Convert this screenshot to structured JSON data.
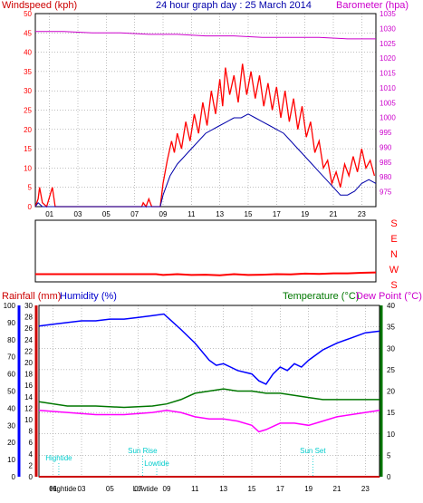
{
  "colors": {
    "wind": "#ff0000",
    "gust": "#ff0000",
    "avg_wind": "#0000aa",
    "baro": "#cc00cc",
    "rain": "#cc0000",
    "humidity": "#0000ff",
    "temperature": "#007700",
    "dew_point": "#ff00ff",
    "direction": "#ff0000",
    "events": "#00cccc",
    "grid": "#808080"
  },
  "chart_data": [
    {
      "id": "wind_baro",
      "type": "line",
      "title": "24 hour graph day : 25 March 2014",
      "ylabel_left": "Windspeed (kph)",
      "ylabel_right": "Barometer (hpa)",
      "xlim": [
        0,
        24
      ],
      "ylim_left": [
        0,
        50
      ],
      "ylim_right": [
        970,
        1035
      ],
      "xticks": [
        "01",
        "03",
        "05",
        "07",
        "09",
        "11",
        "13",
        "15",
        "17",
        "19",
        "21",
        "23"
      ],
      "yticks_left": [
        "0",
        "5",
        "10",
        "15",
        "20",
        "25",
        "30",
        "35",
        "40",
        "45",
        "50"
      ],
      "yticks_right": [
        "975",
        "980",
        "985",
        "990",
        "995",
        "1000",
        "1005",
        "1010",
        "1015",
        "1020",
        "1025",
        "1030",
        "1035"
      ],
      "grid": true,
      "series": [
        {
          "name": "Windspeed",
          "axis": "left",
          "color": "#ff0000",
          "points": [
            [
              0,
              0
            ],
            [
              0.2,
              2
            ],
            [
              0.3,
              5
            ],
            [
              0.5,
              1
            ],
            [
              0.8,
              0
            ],
            [
              1.2,
              5
            ],
            [
              1.4,
              0
            ],
            [
              7.5,
              0
            ],
            [
              7.6,
              1
            ],
            [
              7.8,
              0
            ],
            [
              8.0,
              2
            ],
            [
              8.2,
              0
            ],
            [
              8.8,
              0
            ],
            [
              9.0,
              6
            ],
            [
              9.3,
              12
            ],
            [
              9.6,
              17
            ],
            [
              9.8,
              14
            ],
            [
              10.0,
              19
            ],
            [
              10.3,
              15
            ],
            [
              10.6,
              22
            ],
            [
              10.9,
              17
            ],
            [
              11.2,
              24
            ],
            [
              11.5,
              19
            ],
            [
              11.8,
              27
            ],
            [
              12.1,
              21
            ],
            [
              12.4,
              30
            ],
            [
              12.7,
              24
            ],
            [
              13.0,
              33
            ],
            [
              13.2,
              26
            ],
            [
              13.4,
              36
            ],
            [
              13.7,
              29
            ],
            [
              14.0,
              34
            ],
            [
              14.3,
              27
            ],
            [
              14.6,
              37
            ],
            [
              14.9,
              29
            ],
            [
              15.2,
              35
            ],
            [
              15.5,
              28
            ],
            [
              15.8,
              34
            ],
            [
              16.1,
              26
            ],
            [
              16.4,
              32
            ],
            [
              16.7,
              25
            ],
            [
              17.0,
              31
            ],
            [
              17.3,
              23
            ],
            [
              17.6,
              30
            ],
            [
              17.9,
              22
            ],
            [
              18.2,
              28
            ],
            [
              18.5,
              20
            ],
            [
              18.8,
              26
            ],
            [
              19.1,
              18
            ],
            [
              19.4,
              22
            ],
            [
              19.7,
              14
            ],
            [
              20.0,
              17
            ],
            [
              20.3,
              10
            ],
            [
              20.6,
              12
            ],
            [
              20.9,
              6
            ],
            [
              21.2,
              9
            ],
            [
              21.5,
              5
            ],
            [
              21.8,
              11
            ],
            [
              22.1,
              8
            ],
            [
              22.4,
              13
            ],
            [
              22.7,
              9
            ],
            [
              23.0,
              15
            ],
            [
              23.3,
              10
            ],
            [
              23.6,
              12
            ],
            [
              23.9,
              8
            ]
          ]
        },
        {
          "name": "Average",
          "axis": "left",
          "color": "#0000aa",
          "points": [
            [
              0,
              0
            ],
            [
              0.2,
              1
            ],
            [
              0.5,
              0
            ],
            [
              8.8,
              0
            ],
            [
              9.0,
              3
            ],
            [
              9.5,
              8
            ],
            [
              10.0,
              11
            ],
            [
              10.5,
              13
            ],
            [
              11.0,
              15
            ],
            [
              11.5,
              17
            ],
            [
              12.0,
              19
            ],
            [
              12.5,
              20
            ],
            [
              13.0,
              21
            ],
            [
              13.5,
              22
            ],
            [
              14.0,
              23
            ],
            [
              14.5,
              23
            ],
            [
              15.0,
              24
            ],
            [
              15.5,
              23
            ],
            [
              16.0,
              22
            ],
            [
              16.5,
              21
            ],
            [
              17.0,
              20
            ],
            [
              17.5,
              19
            ],
            [
              18.0,
              17
            ],
            [
              18.5,
              15
            ],
            [
              19.0,
              13
            ],
            [
              19.5,
              11
            ],
            [
              20.0,
              9
            ],
            [
              20.5,
              7
            ],
            [
              21.0,
              5
            ],
            [
              21.5,
              3
            ],
            [
              22.0,
              3
            ],
            [
              22.5,
              4
            ],
            [
              23.0,
              6
            ],
            [
              23.5,
              7
            ],
            [
              24.0,
              6
            ]
          ]
        },
        {
          "name": "Barometer",
          "axis": "right",
          "color": "#cc00cc",
          "points": [
            [
              0,
              1029
            ],
            [
              2,
              1029
            ],
            [
              4,
              1028.5
            ],
            [
              6,
              1028.5
            ],
            [
              8,
              1028
            ],
            [
              10,
              1028
            ],
            [
              12,
              1027.5
            ],
            [
              14,
              1027.5
            ],
            [
              16,
              1027
            ],
            [
              18,
              1027
            ],
            [
              20,
              1027
            ],
            [
              22,
              1026.5
            ],
            [
              24,
              1026.5
            ]
          ]
        }
      ]
    },
    {
      "id": "wind_direction",
      "type": "line",
      "ylabel_right": [
        "S",
        "E",
        "N",
        "W",
        "S"
      ],
      "xlim": [
        0,
        24
      ],
      "ylim": [
        0,
        360
      ],
      "series": [
        {
          "name": "Wind direction",
          "color": "#ff0000",
          "points": [
            [
              0,
              45
            ],
            [
              8.5,
              45
            ],
            [
              9,
              40
            ],
            [
              10,
              45
            ],
            [
              11,
              40
            ],
            [
              12,
              42
            ],
            [
              13,
              38
            ],
            [
              14,
              45
            ],
            [
              15,
              40
            ],
            [
              16,
              42
            ],
            [
              17,
              45
            ],
            [
              18,
              44
            ],
            [
              19,
              48
            ],
            [
              20,
              46
            ],
            [
              21,
              50
            ],
            [
              22,
              50
            ],
            [
              23,
              53
            ],
            [
              24,
              55
            ]
          ]
        }
      ]
    },
    {
      "id": "rain_temp",
      "type": "line",
      "ylabels": [
        "Rainfall (mm)",
        "Humidity (%)",
        "Temperature (°C)",
        "Dew Point (°C)"
      ],
      "xlim": [
        0,
        24
      ],
      "xticks": [
        "01",
        "03",
        "05",
        "07",
        "09",
        "11",
        "13",
        "15",
        "17",
        "19",
        "21",
        "23"
      ],
      "humidity_ticks": [
        "0",
        "10",
        "20",
        "30",
        "40",
        "50",
        "60",
        "70",
        "80",
        "90",
        "100"
      ],
      "rain_ticks": [
        "0",
        "2",
        "4",
        "6",
        "8",
        "10",
        "12",
        "14",
        "16",
        "18",
        "20",
        "22",
        "24",
        "26",
        "28",
        "30"
      ],
      "temp_ticks": [
        "0",
        "5",
        "10",
        "15",
        "20",
        "25",
        "30",
        "35",
        "40"
      ],
      "humidity_range": [
        0,
        100
      ],
      "rain_range": [
        0,
        30
      ],
      "temp_range": [
        0,
        40
      ],
      "grid": true,
      "series": [
        {
          "name": "Humidity",
          "axis": "humidity",
          "color": "#0000ff",
          "points": [
            [
              0,
              88
            ],
            [
              1,
              89
            ],
            [
              2,
              90
            ],
            [
              3,
              91
            ],
            [
              4,
              91
            ],
            [
              5,
              92
            ],
            [
              6,
              92
            ],
            [
              7,
              93
            ],
            [
              8,
              94
            ],
            [
              8.8,
              95
            ],
            [
              9.2,
              92
            ],
            [
              10,
              86
            ],
            [
              11,
              78
            ],
            [
              12,
              68
            ],
            [
              12.5,
              65
            ],
            [
              13,
              66
            ],
            [
              13.5,
              64
            ],
            [
              14,
              62
            ],
            [
              15,
              60
            ],
            [
              15.5,
              56
            ],
            [
              16,
              54
            ],
            [
              16.5,
              60
            ],
            [
              17,
              64
            ],
            [
              17.5,
              62
            ],
            [
              18,
              66
            ],
            [
              18.5,
              64
            ],
            [
              19,
              68
            ],
            [
              20,
              74
            ],
            [
              21,
              78
            ],
            [
              22,
              81
            ],
            [
              23,
              84
            ],
            [
              24,
              85
            ]
          ]
        },
        {
          "name": "Temperature",
          "axis": "temp",
          "color": "#007700",
          "points": [
            [
              0,
              17.5
            ],
            [
              2,
              16.5
            ],
            [
              4,
              16.5
            ],
            [
              6,
              16.2
            ],
            [
              8,
              16.5
            ],
            [
              9,
              17
            ],
            [
              10,
              18
            ],
            [
              11,
              19.5
            ],
            [
              12,
              20
            ],
            [
              13,
              20.5
            ],
            [
              14,
              20
            ],
            [
              15,
              20
            ],
            [
              16,
              19.5
            ],
            [
              17,
              19.5
            ],
            [
              18,
              19
            ],
            [
              19,
              18.5
            ],
            [
              20,
              18
            ],
            [
              21,
              18
            ],
            [
              22,
              18
            ],
            [
              23,
              18
            ],
            [
              24,
              18
            ]
          ]
        },
        {
          "name": "Dew Point",
          "axis": "temp",
          "color": "#ff00ff",
          "points": [
            [
              0,
              15.5
            ],
            [
              2,
              15
            ],
            [
              4,
              14.5
            ],
            [
              6,
              14.5
            ],
            [
              8,
              15
            ],
            [
              9,
              15.5
            ],
            [
              10,
              15
            ],
            [
              11,
              14
            ],
            [
              12,
              13.5
            ],
            [
              13,
              13.5
            ],
            [
              14,
              13
            ],
            [
              15,
              12
            ],
            [
              15.5,
              10.5
            ],
            [
              16,
              11
            ],
            [
              17,
              12.5
            ],
            [
              18,
              12.5
            ],
            [
              19,
              12
            ],
            [
              20,
              13
            ],
            [
              21,
              14
            ],
            [
              22,
              14.5
            ],
            [
              23,
              15
            ],
            [
              24,
              15.5
            ]
          ]
        },
        {
          "name": "Rainfall",
          "axis": "rain",
          "color": "#cc0000",
          "points": [
            [
              0,
              0
            ],
            [
              24,
              0
            ]
          ]
        }
      ],
      "events": [
        {
          "label": "Hightide",
          "hour": 1.4,
          "level": "high"
        },
        {
          "label": "Hightide",
          "hour": 1.7,
          "level": "bottom"
        },
        {
          "label": "Sun Rise",
          "hour": 7.3,
          "level": "mid"
        },
        {
          "label": "Lowtide",
          "hour": 8.3,
          "level": "low"
        },
        {
          "label": "Lowtide",
          "hour": 7.5,
          "level": "bottom"
        },
        {
          "label": "Sun Set",
          "hour": 19.3,
          "level": "mid"
        }
      ]
    }
  ]
}
